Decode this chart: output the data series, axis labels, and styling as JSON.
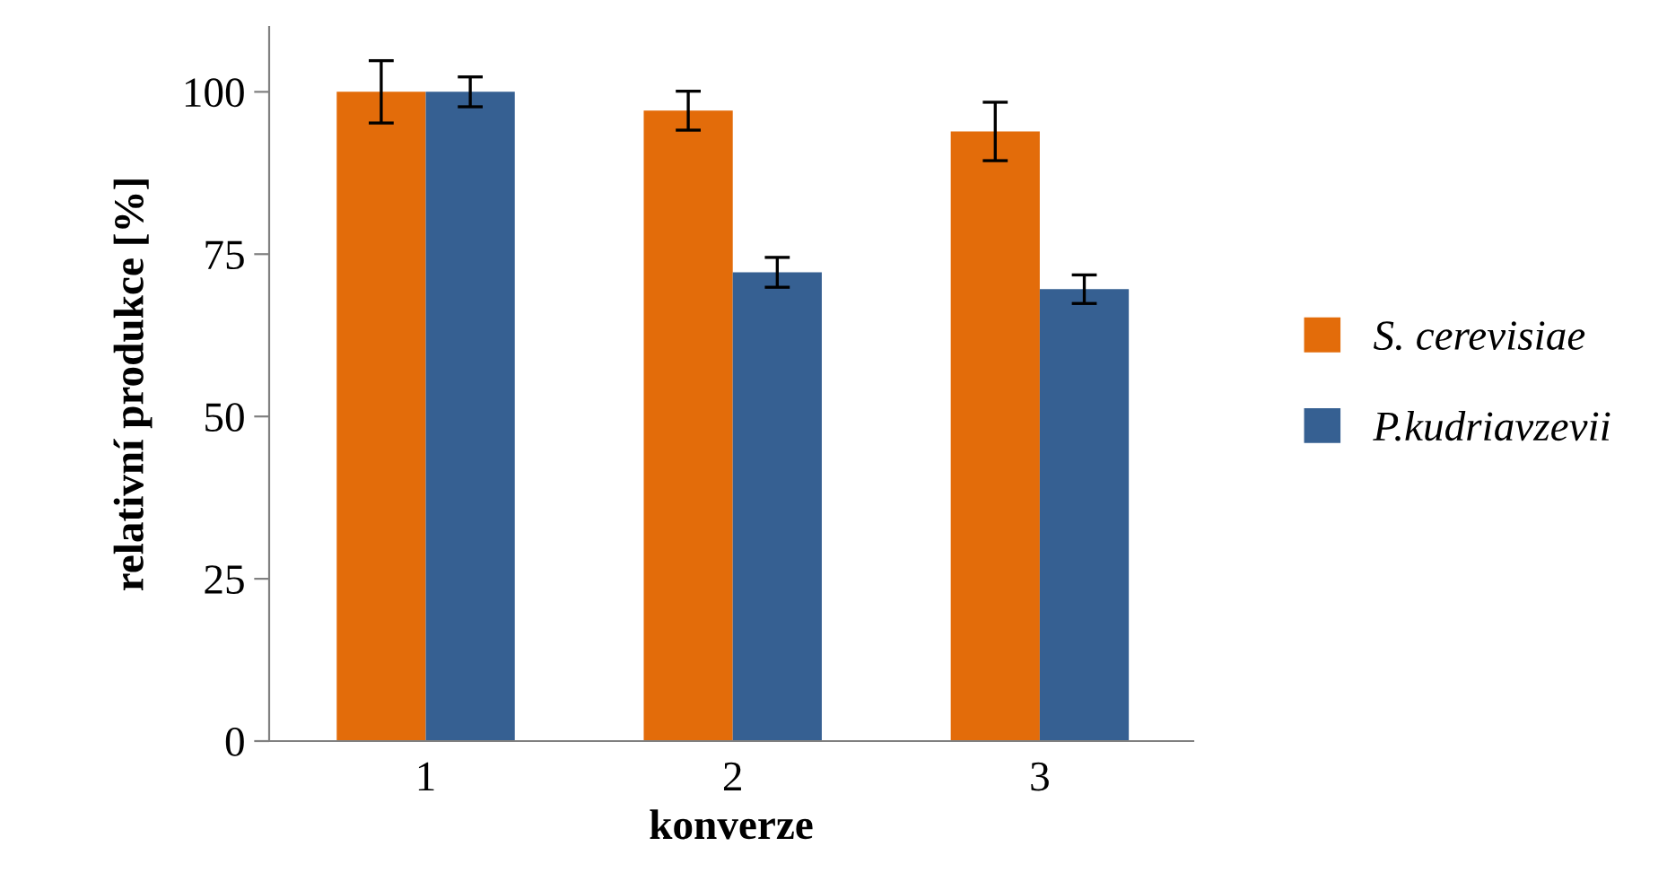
{
  "chart_data": {
    "type": "bar",
    "xlabel": "konverze",
    "ylabel": "relativní produkce [%]",
    "categories": [
      "1",
      "2",
      "3"
    ],
    "series": [
      {
        "name": "S. cerevisiae",
        "color": "#e36c0a",
        "values": [
          100,
          97.1,
          93.9
        ],
        "errors": [
          4.8,
          3,
          4.5
        ]
      },
      {
        "name": "P.kudriavzevii",
        "color": "#366092",
        "values": [
          100,
          72.2,
          69.6
        ],
        "errors": [
          2.3,
          2.3,
          2.2
        ]
      }
    ],
    "ylim": [
      0,
      110
    ],
    "yticks": [
      0,
      25,
      50,
      75,
      100
    ],
    "grid": false,
    "legend": "right"
  }
}
